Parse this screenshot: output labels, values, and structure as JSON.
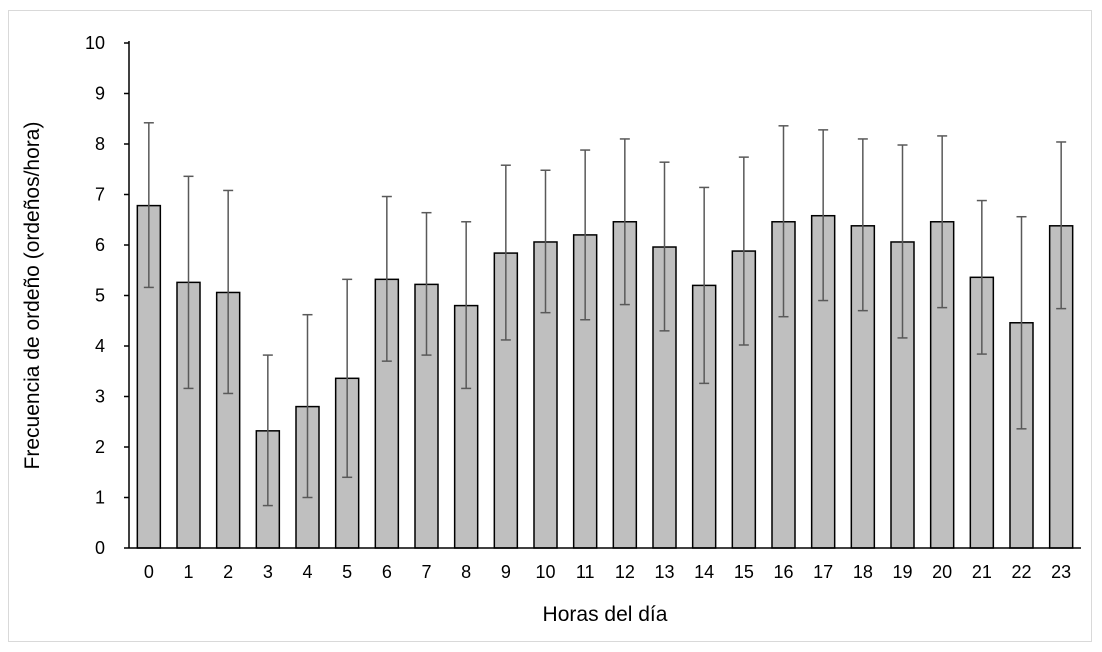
{
  "chart_data": {
    "type": "bar",
    "title": "",
    "xlabel": "Horas del día",
    "ylabel": "Frecuencia de ordeño (ordeños/hora)",
    "ylim": [
      0,
      10
    ],
    "yticks": [
      0,
      1,
      2,
      3,
      4,
      5,
      6,
      7,
      8,
      9,
      10
    ],
    "grid": false,
    "legend": "none",
    "categories": [
      "0",
      "1",
      "2",
      "3",
      "4",
      "5",
      "6",
      "7",
      "8",
      "9",
      "10",
      "11",
      "12",
      "13",
      "14",
      "15",
      "16",
      "17",
      "18",
      "19",
      "20",
      "21",
      "22",
      "23"
    ],
    "values": [
      6.78,
      5.26,
      5.06,
      2.32,
      2.8,
      3.36,
      5.32,
      5.22,
      4.8,
      5.84,
      6.06,
      6.2,
      6.46,
      5.96,
      5.2,
      5.88,
      6.46,
      6.58,
      6.38,
      6.06,
      6.46,
      5.36,
      4.46,
      6.38
    ],
    "error_upper": [
      8.42,
      7.36,
      7.08,
      3.82,
      4.62,
      5.32,
      6.96,
      6.64,
      6.46,
      7.58,
      7.48,
      7.88,
      8.1,
      7.64,
      7.14,
      7.74,
      8.36,
      8.28,
      8.1,
      7.98,
      8.16,
      6.88,
      6.56,
      8.04
    ],
    "error_lower": [
      5.16,
      3.16,
      3.06,
      0.84,
      1.0,
      1.4,
      3.7,
      3.82,
      3.16,
      4.12,
      4.66,
      4.52,
      4.82,
      4.3,
      3.26,
      4.02,
      4.58,
      4.9,
      4.7,
      4.16,
      4.76,
      3.84,
      2.36,
      4.74
    ],
    "bar_color": "#bfbfbf",
    "bar_edge_color": "#000000",
    "error_bar_color": "#595959"
  }
}
